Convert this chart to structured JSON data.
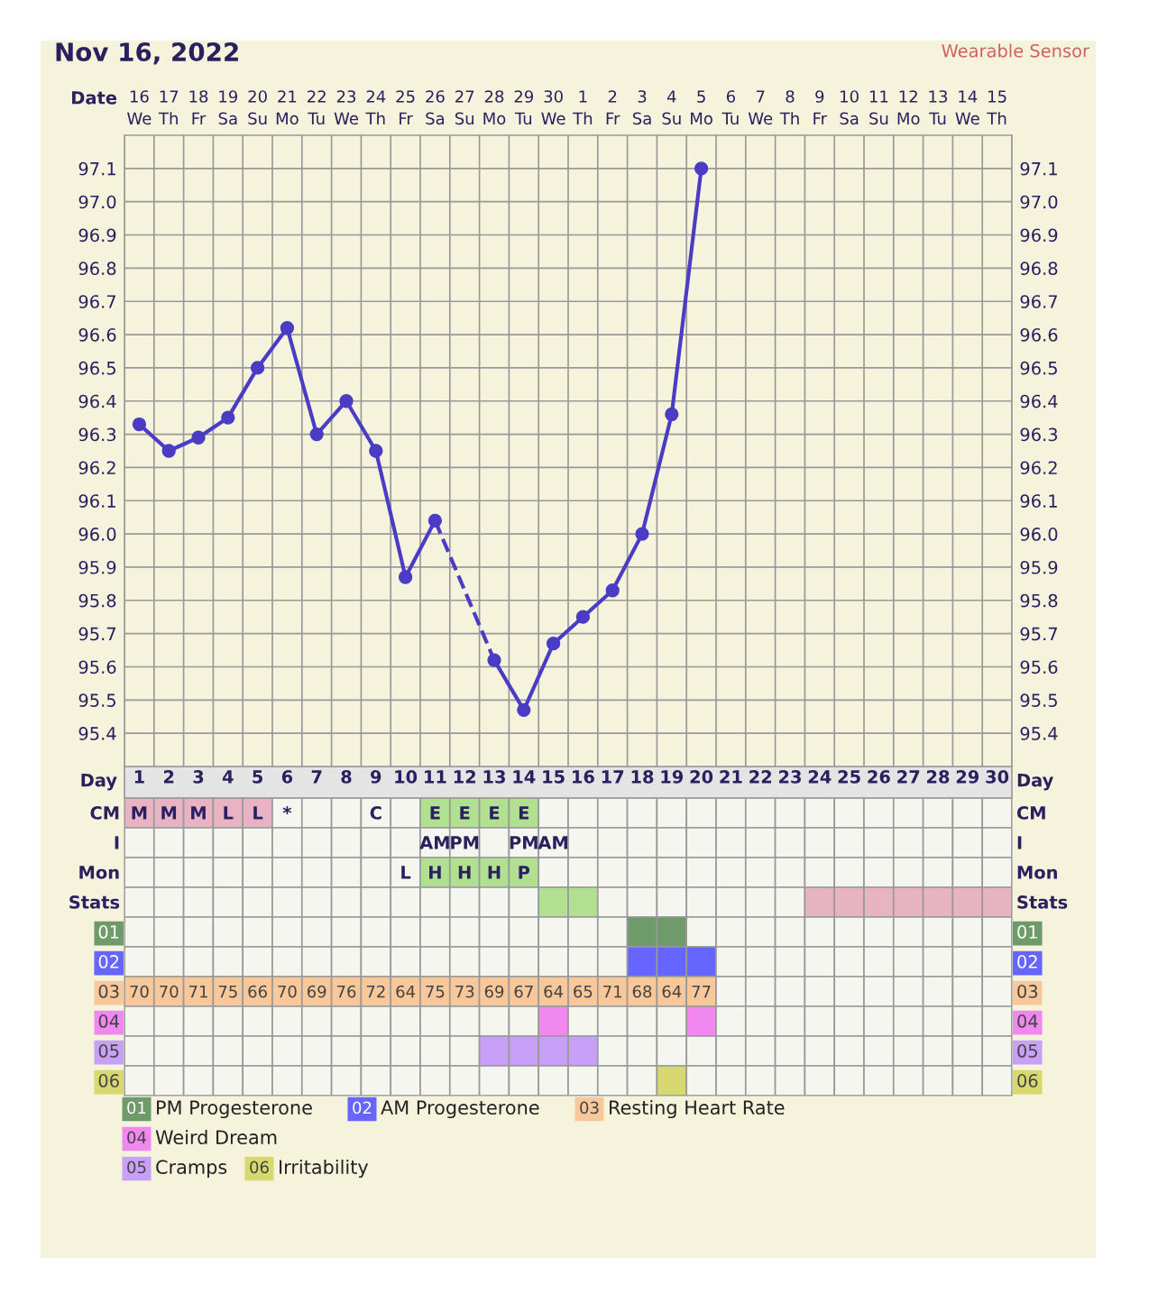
{
  "chart_data": [
    {
      "type": "line",
      "title": "Nov 16, 2022",
      "subtitle": "Wearable Sensor",
      "xlabel": "Date",
      "categories": [
        "16\nWe",
        "17\nTh",
        "18\nFr",
        "19\nSa",
        "20\nSu",
        "21\nMo",
        "22\nTu",
        "23\nWe",
        "24\nTh",
        "25\nFr",
        "26\nSa",
        "27\nSu",
        "28\nMo",
        "29\nTu",
        "30\nWe",
        "1\nTh",
        "2\nFr",
        "3\nSa",
        "4\nSu",
        "5\nMo",
        "6\nTu",
        "7\nWe",
        "8\nTh",
        "9\nFr",
        "10\nSa",
        "11\nSu",
        "12\nMo",
        "13\nTu",
        "14\nWe",
        "15\nTh"
      ],
      "series": [
        {
          "color": "#4a3cc4",
          "values": [
            96.33,
            96.25,
            96.29,
            96.35,
            96.5,
            96.62,
            96.3,
            96.4,
            96.25,
            95.87,
            96.04,
            null,
            95.62,
            95.47,
            95.67,
            95.75,
            95.83,
            96.0,
            96.36,
            97.1,
            null,
            null,
            null,
            null,
            null,
            null,
            null,
            null,
            null,
            null
          ]
        }
      ],
      "ylim": [
        95.3,
        97.2
      ],
      "yticks": [
        {
          "value": 95.4,
          "label": "95.4"
        },
        {
          "value": 95.5,
          "label": "95.5"
        },
        {
          "value": 95.6,
          "label": "95.6"
        },
        {
          "value": 95.7,
          "label": "95.7"
        },
        {
          "value": 95.8,
          "label": "95.8"
        },
        {
          "value": 95.9,
          "label": "95.9"
        },
        {
          "value": 96.0,
          "label": "96.0"
        },
        {
          "value": 96.1,
          "label": "96.1"
        },
        {
          "value": 96.2,
          "label": "96.2"
        },
        {
          "value": 96.3,
          "label": "96.3"
        },
        {
          "value": 96.4,
          "label": "96.4"
        },
        {
          "value": 96.5,
          "label": "96.5"
        },
        {
          "value": 96.6,
          "label": "96.6"
        },
        {
          "value": 96.7,
          "label": "96.7"
        },
        {
          "value": 96.8,
          "label": "96.8"
        },
        {
          "value": 96.9,
          "label": "96.9"
        },
        {
          "value": 97.0,
          "label": "97.0"
        },
        {
          "value": 97.1,
          "label": "97.1"
        }
      ],
      "y2lim": [
        95.3,
        97.2
      ],
      "y2ticks": [
        {
          "value": 95.4,
          "label": "95.4"
        },
        {
          "value": 95.5,
          "label": "95.5"
        },
        {
          "value": 95.6,
          "label": "95.6"
        },
        {
          "value": 95.7,
          "label": "95.7"
        },
        {
          "value": 95.8,
          "label": "95.8"
        },
        {
          "value": 95.9,
          "label": "95.9"
        },
        {
          "value": 96.0,
          "label": "96.0"
        },
        {
          "value": 96.1,
          "label": "96.1"
        },
        {
          "value": 96.2,
          "label": "96.2"
        },
        {
          "value": 96.3,
          "label": "96.3"
        },
        {
          "value": 96.4,
          "label": "96.4"
        },
        {
          "value": 96.5,
          "label": "96.5"
        },
        {
          "value": 96.6,
          "label": "96.6"
        },
        {
          "value": 96.7,
          "label": "96.7"
        },
        {
          "value": 96.8,
          "label": "96.8"
        },
        {
          "value": 96.9,
          "label": "96.9"
        },
        {
          "value": 97.0,
          "label": "97.0"
        },
        {
          "value": 97.1,
          "label": "97.1"
        }
      ],
      "grid": true,
      "marker": "circle",
      "line_style": "solid",
      "legend": false
    },
    {
      "type": "heatmap",
      "xlabel": "Day",
      "categories": [
        "1",
        "2",
        "3",
        "4",
        "5",
        "6",
        "7",
        "8",
        "9",
        "10",
        "11",
        "12",
        "13",
        "14",
        "15",
        "16",
        "17",
        "18",
        "19",
        "20",
        "21",
        "22",
        "23",
        "24",
        "25",
        "26",
        "27",
        "28",
        "29",
        "30"
      ],
      "y_categories": [
        "CM",
        "I",
        "Mon",
        "Stats",
        "01",
        "02",
        "03",
        "04",
        "05",
        "06"
      ],
      "y2_categories": [
        "CM",
        "I",
        "Mon",
        "Stats",
        "01",
        "02",
        "03",
        "04",
        "05",
        "06"
      ],
      "cells": [
        [
          null,
          null,
          null,
          null,
          null,
          null,
          null,
          null,
          null,
          null,
          null,
          null,
          null,
          null,
          null,
          null,
          null,
          null,
          null,
          null,
          null,
          null,
          null,
          null,
          null,
          null,
          null,
          null,
          null,
          null
        ],
        [
          null,
          null,
          null,
          null,
          null,
          null,
          null,
          null,
          null,
          null,
          null,
          null,
          null,
          null,
          null,
          null,
          null,
          null,
          null,
          null,
          null,
          null,
          null,
          null,
          null,
          null,
          null,
          null,
          null,
          null
        ],
        [
          null,
          null,
          null,
          null,
          null,
          null,
          null,
          null,
          null,
          null,
          null,
          null,
          null,
          null,
          null,
          null,
          null,
          null,
          null,
          null,
          null,
          null,
          null,
          null,
          null,
          null,
          null,
          null,
          null,
          null
        ],
        [
          null,
          null,
          null,
          null,
          null,
          null,
          null,
          null,
          null,
          null,
          null,
          null,
          null,
          null,
          null,
          null,
          null,
          null,
          null,
          null,
          null,
          null,
          null,
          null,
          null,
          null,
          null,
          null,
          null,
          null
        ],
        [
          null,
          null,
          null,
          null,
          null,
          null,
          null,
          null,
          null,
          null,
          null,
          null,
          null,
          null,
          null,
          null,
          null,
          null,
          null,
          null,
          null,
          null,
          null,
          null,
          null,
          null,
          null,
          null,
          null,
          null
        ],
        [
          null,
          null,
          null,
          null,
          null,
          null,
          null,
          null,
          null,
          null,
          null,
          null,
          null,
          null,
          null,
          null,
          null,
          null,
          null,
          null,
          null,
          null,
          null,
          null,
          null,
          null,
          null,
          null,
          null,
          null
        ],
        [
          null,
          null,
          null,
          null,
          null,
          null,
          null,
          null,
          null,
          null,
          null,
          null,
          null,
          null,
          null,
          null,
          null,
          null,
          null,
          null,
          null,
          null,
          null,
          null,
          null,
          null,
          null,
          null,
          null,
          null
        ],
        [
          null,
          null,
          null,
          null,
          null,
          null,
          null,
          null,
          null,
          null,
          null,
          null,
          null,
          null,
          null,
          null,
          null,
          null,
          null,
          null,
          null,
          null,
          null,
          null,
          null,
          null,
          null,
          null,
          null,
          null
        ],
        [
          null,
          null,
          null,
          null,
          null,
          null,
          null,
          null,
          null,
          null,
          null,
          null,
          null,
          null,
          null,
          null,
          null,
          null,
          null,
          null,
          null,
          null,
          null,
          null,
          null,
          null,
          null,
          null,
          null,
          null
        ],
        [
          null,
          null,
          null,
          null,
          null,
          null,
          null,
          null,
          null,
          null,
          null,
          null,
          null,
          null,
          null,
          null,
          null,
          null,
          null,
          null,
          null,
          null,
          null,
          null,
          null,
          null,
          null,
          null,
          null,
          null
        ]
      ],
      "cell_labels": [
        [
          "M",
          "M",
          "M",
          "L",
          "L",
          "*",
          null,
          null,
          "C",
          null,
          "E",
          "E",
          "E",
          "E",
          null,
          null,
          null,
          null,
          null,
          null,
          null,
          null,
          null,
          null,
          null,
          null,
          null,
          null,
          null,
          null
        ],
        [
          null,
          null,
          null,
          null,
          null,
          null,
          null,
          null,
          null,
          null,
          "AM",
          "PM",
          null,
          "PM",
          "AM",
          null,
          null,
          null,
          null,
          null,
          null,
          null,
          null,
          null,
          null,
          null,
          null,
          null,
          null,
          null
        ],
        [
          null,
          null,
          null,
          null,
          null,
          null,
          null,
          null,
          null,
          "L",
          "H",
          "H",
          "H",
          "P",
          null,
          null,
          null,
          null,
          null,
          null,
          null,
          null,
          null,
          null,
          null,
          null,
          null,
          null,
          null,
          null
        ],
        [
          null,
          null,
          null,
          null,
          null,
          null,
          null,
          null,
          null,
          null,
          null,
          null,
          null,
          null,
          null,
          null,
          null,
          null,
          null,
          null,
          null,
          null,
          null,
          null,
          null,
          null,
          null,
          null,
          null,
          null
        ],
        [
          null,
          null,
          null,
          null,
          null,
          null,
          null,
          null,
          null,
          null,
          null,
          null,
          null,
          null,
          null,
          null,
          null,
          null,
          null,
          null,
          null,
          null,
          null,
          null,
          null,
          null,
          null,
          null,
          null,
          null
        ],
        [
          null,
          null,
          null,
          null,
          null,
          null,
          null,
          null,
          null,
          null,
          null,
          null,
          null,
          null,
          null,
          null,
          null,
          null,
          null,
          null,
          null,
          null,
          null,
          null,
          null,
          null,
          null,
          null,
          null,
          null
        ],
        [
          "70",
          "70",
          "71",
          "75",
          "66",
          "70",
          "69",
          "76",
          "72",
          "64",
          "75",
          "73",
          "69",
          "67",
          "64",
          "65",
          "71",
          "68",
          "64",
          "77",
          null,
          null,
          null,
          null,
          null,
          null,
          null,
          null,
          null,
          null
        ],
        [
          null,
          null,
          null,
          null,
          null,
          null,
          null,
          null,
          null,
          null,
          null,
          null,
          null,
          null,
          null,
          null,
          null,
          null,
          null,
          null,
          null,
          null,
          null,
          null,
          null,
          null,
          null,
          null,
          null,
          null
        ],
        [
          null,
          null,
          null,
          null,
          null,
          null,
          null,
          null,
          null,
          null,
          null,
          null,
          null,
          null,
          null,
          null,
          null,
          null,
          null,
          null,
          null,
          null,
          null,
          null,
          null,
          null,
          null,
          null,
          null,
          null
        ],
        [
          null,
          null,
          null,
          null,
          null,
          null,
          null,
          null,
          null,
          null,
          null,
          null,
          null,
          null,
          null,
          null,
          null,
          null,
          null,
          null,
          null,
          null,
          null,
          null,
          null,
          null,
          null,
          null,
          null,
          null
        ]
      ],
      "colors": [
        [
          "#e8b4c4",
          "#e8b4c4",
          "#e8b4c4",
          "#e8b4c4",
          "#e8b4c4",
          null,
          null,
          null,
          null,
          null,
          "#b0e090",
          "#b0e090",
          "#b0e090",
          "#b0e090",
          null,
          null,
          null,
          null,
          null,
          null,
          null,
          null,
          null,
          null,
          null,
          null,
          null,
          null,
          null,
          null
        ],
        [
          null,
          null,
          null,
          null,
          null,
          null,
          null,
          null,
          null,
          null,
          null,
          null,
          null,
          null,
          null,
          null,
          null,
          null,
          null,
          null,
          null,
          null,
          null,
          null,
          null,
          null,
          null,
          null,
          null,
          null
        ],
        [
          null,
          null,
          null,
          null,
          null,
          null,
          null,
          null,
          null,
          null,
          "#b0e090",
          "#b0e090",
          "#b0e090",
          "#b0e090",
          null,
          null,
          null,
          null,
          null,
          null,
          null,
          null,
          null,
          null,
          null,
          null,
          null,
          null,
          null,
          null
        ],
        [
          null,
          null,
          null,
          null,
          null,
          null,
          null,
          null,
          null,
          null,
          null,
          null,
          null,
          null,
          "#b0e090",
          "#b0e090",
          null,
          null,
          null,
          null,
          null,
          null,
          null,
          "#e8b4c4",
          "#e8b4c4",
          "#e8b4c4",
          "#e8b4c4",
          "#e8b4c4",
          "#e8b4c4",
          "#e8b4c4"
        ],
        [
          null,
          null,
          null,
          null,
          null,
          null,
          null,
          null,
          null,
          null,
          null,
          null,
          null,
          null,
          null,
          null,
          null,
          "#6f9a6a",
          "#6f9a6a",
          null,
          null,
          null,
          null,
          null,
          null,
          null,
          null,
          null,
          null,
          null
        ],
        [
          null,
          null,
          null,
          null,
          null,
          null,
          null,
          null,
          null,
          null,
          null,
          null,
          null,
          null,
          null,
          null,
          null,
          "#6666ff",
          "#6666ff",
          "#6666ff",
          null,
          null,
          null,
          null,
          null,
          null,
          null,
          null,
          null,
          null
        ],
        [
          "#f8c89a",
          "#f8c89a",
          "#f8c89a",
          "#f8c89a",
          "#f8c89a",
          "#f8c89a",
          "#f8c89a",
          "#f8c89a",
          "#f8c89a",
          "#f8c89a",
          "#f8c89a",
          "#f8c89a",
          "#f8c89a",
          "#f8c89a",
          "#f8c89a",
          "#f8c89a",
          "#f8c89a",
          "#f8c89a",
          "#f8c89a",
          "#f8c89a",
          null,
          null,
          null,
          null,
          null,
          null,
          null,
          null,
          null,
          null
        ],
        [
          null,
          null,
          null,
          null,
          null,
          null,
          null,
          null,
          null,
          null,
          null,
          null,
          null,
          null,
          "#f088f0",
          null,
          null,
          null,
          null,
          "#f088f0",
          null,
          null,
          null,
          null,
          null,
          null,
          null,
          null,
          null,
          null
        ],
        [
          null,
          null,
          null,
          null,
          null,
          null,
          null,
          null,
          null,
          null,
          null,
          null,
          "#c8a0f8",
          "#c8a0f8",
          "#c8a0f8",
          "#c8a0f8",
          null,
          null,
          null,
          null,
          null,
          null,
          null,
          null,
          null,
          null,
          null,
          null,
          null,
          null
        ],
        [
          null,
          null,
          null,
          null,
          null,
          null,
          null,
          null,
          null,
          null,
          null,
          null,
          null,
          null,
          null,
          null,
          null,
          null,
          "#d8d870",
          null,
          null,
          null,
          null,
          null,
          null,
          null,
          null,
          null,
          null,
          null
        ]
      ],
      "annotations": [
        "PM Progesterone",
        "AM Progesterone",
        "Resting Heart Rate",
        "Weird Dream",
        "Cramps",
        "Irritability"
      ]
    }
  ]
}
